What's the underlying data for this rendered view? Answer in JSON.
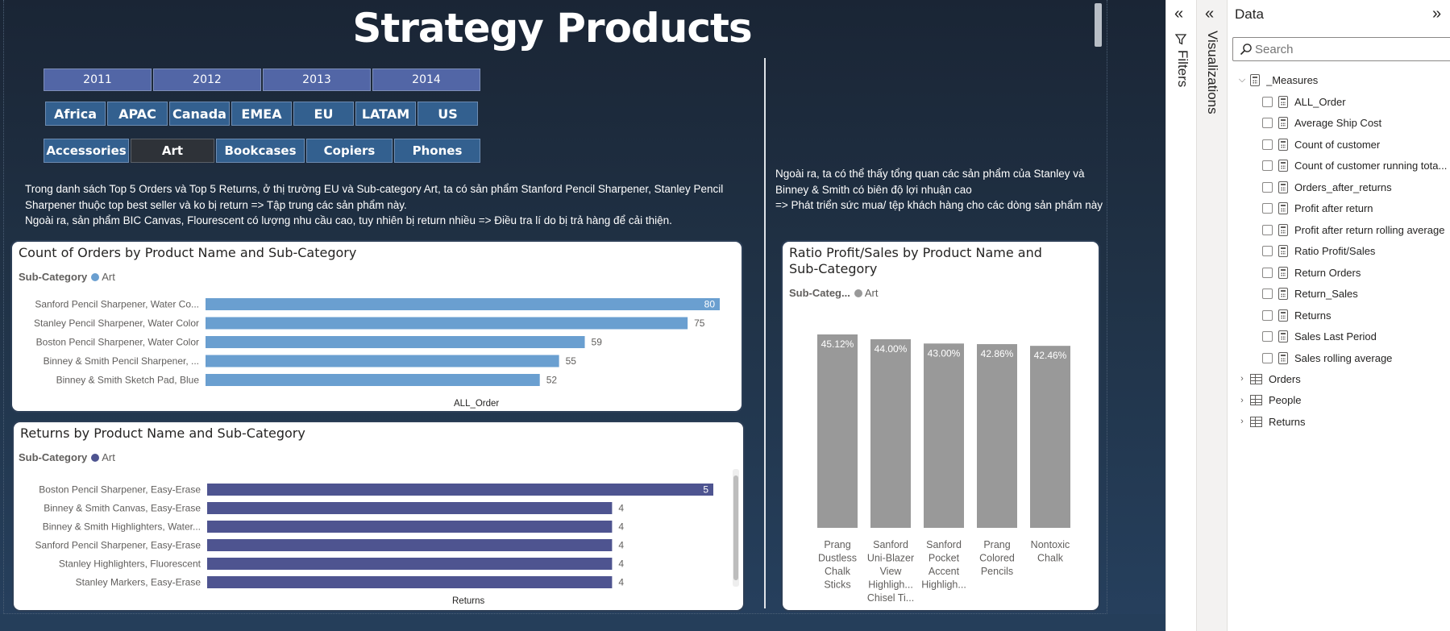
{
  "report": {
    "title": "Strategy Products",
    "years": [
      "2011",
      "2012",
      "2013",
      "2014"
    ],
    "regions": [
      "Africa",
      "APAC",
      "Canada",
      "EMEA",
      "EU",
      "LATAM",
      "US"
    ],
    "subcategories": [
      "Accessories",
      "Art",
      "Bookcases",
      "Copiers",
      "Phones"
    ],
    "selected_subcategory": "Art",
    "note_left": "Trong danh sách Top 5 Orders và Top 5 Returns, ở thị trường EU và Sub-category Art, ta có sản phẩm Stanford Pencil Sharpener, Stanley Pencil Sharpener thuộc top best seller và ko bị return => Tập trung các sản phẩm này.\nNgoài ra, sản phẩm BIC Canvas, Flourescent có lượng nhu cầu cao, tuy nhiên bị return nhiều => Điều tra lí do bị trả hàng để cải thiện.",
    "note_right": "Ngoài ra, ta có thể thấy tổng quan các sản phẩm của Stanley và Binney & Smith có biên độ lợi nhuận cao\n=> Phát triển sức mua/ tệp khách hàng cho các dòng sản phẩm này"
  },
  "colors": {
    "orders_bar": "#6a9fd0",
    "returns_bar": "#4e5490",
    "ratio_bar": "#999999",
    "legend_orders": "#6a9fd0",
    "legend_returns": "#4e5490",
    "legend_ratio": "#999999"
  },
  "chart_data": [
    {
      "id": "orders",
      "type": "bar",
      "orientation": "horizontal",
      "title": "Count of Orders by Product Name and Sub-Category",
      "legend_title": "Sub-Category",
      "legend_items": [
        "Art"
      ],
      "xlabel": "ALL_Order",
      "categories": [
        "Sanford Pencil Sharpener, Water Co...",
        "Stanley Pencil Sharpener, Water Color",
        "Boston Pencil Sharpener, Water Color",
        "Binney & Smith Pencil Sharpener, ...",
        "Binney & Smith Sketch Pad, Blue"
      ],
      "values": [
        80,
        75,
        59,
        55,
        52
      ],
      "data_labels": [
        "80",
        "75",
        "59",
        "55",
        "52"
      ],
      "xlim": [
        0,
        80
      ]
    },
    {
      "id": "returns",
      "type": "bar",
      "orientation": "horizontal",
      "title": "Returns by Product Name and Sub-Category",
      "legend_title": "Sub-Category",
      "legend_items": [
        "Art"
      ],
      "xlabel": "Returns",
      "categories": [
        "Boston Pencil Sharpener, Easy-Erase",
        "Binney & Smith Canvas, Easy-Erase",
        "Binney & Smith Highlighters, Water...",
        "Sanford Pencil Sharpener, Easy-Erase",
        "Stanley Highlighters, Fluorescent",
        "Stanley Markers, Easy-Erase"
      ],
      "values": [
        5,
        4,
        4,
        4,
        4,
        4
      ],
      "data_labels": [
        "5",
        "4",
        "4",
        "4",
        "4",
        "4"
      ],
      "xlim": [
        0,
        5
      ]
    },
    {
      "id": "ratio",
      "type": "bar",
      "orientation": "vertical",
      "title": "Ratio Profit/Sales by Product Name and Sub-Category",
      "legend_title": "Sub-Categ...",
      "legend_items": [
        "Art"
      ],
      "categories": [
        [
          "Prang",
          "Dustless",
          "Chalk",
          "Sticks"
        ],
        [
          "Sanford",
          "Uni-Blazer",
          "View",
          "Highligh...",
          "Chisel Ti..."
        ],
        [
          "Sanford",
          "Pocket",
          "Accent",
          "Highligh..."
        ],
        [
          "Prang",
          "Colored",
          "Pencils"
        ],
        [
          "Nontoxic",
          "Chalk"
        ]
      ],
      "values": [
        45.12,
        44.0,
        43.0,
        42.86,
        42.46
      ],
      "data_labels": [
        "45.12%",
        "44.00%",
        "43.00%",
        "42.86%",
        "42.46%"
      ],
      "ylim": [
        0,
        45.12
      ]
    }
  ],
  "panes": {
    "filters_label": "Filters",
    "visualizations_label": "Visualizations",
    "data_title": "Data",
    "search_placeholder": "Search",
    "measures_group": "_Measures",
    "measures": [
      "ALL_Order",
      "Average Ship Cost",
      "Count of customer",
      "Count of customer running tota...",
      "Orders_after_returns",
      "Profit after return",
      "Profit after return rolling average",
      "Ratio Profit/Sales",
      "Return Orders",
      "Return_Sales",
      "Returns",
      "Sales Last Period",
      "Sales rolling average"
    ],
    "tables": [
      "Orders",
      "People",
      "Returns"
    ]
  }
}
